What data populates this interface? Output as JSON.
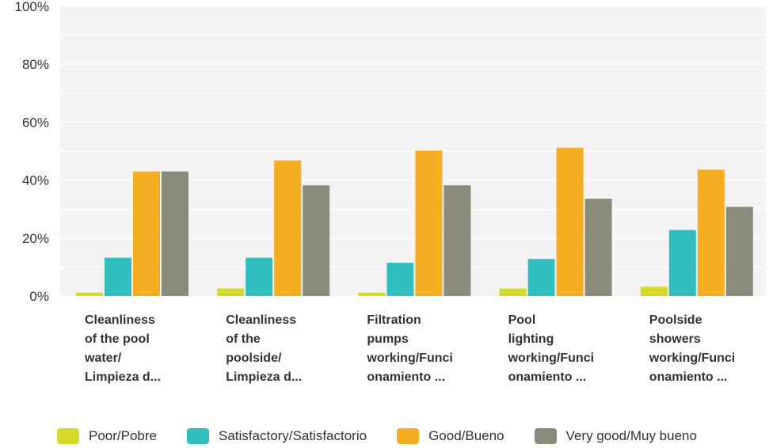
{
  "chart_data": {
    "type": "bar",
    "title": "",
    "xlabel": "",
    "ylabel": "",
    "ylim": [
      0,
      100
    ],
    "yticks": [
      "0%",
      "20%",
      "40%",
      "60%",
      "80%",
      "100%"
    ],
    "grid": true,
    "legend_position": "bottom",
    "categories": [
      [
        "Cleanliness",
        "of the pool",
        "water/",
        "Limpieza d..."
      ],
      [
        "Cleanliness",
        "of the",
        "poolside/",
        "Limpieza d..."
      ],
      [
        "Filtration",
        "pumps",
        "working/Funci",
        "onamiento ..."
      ],
      [
        "Pool",
        "lighting",
        "working/Funci",
        "onamiento ..."
      ],
      [
        "Poolside",
        "showers",
        "working/Funci",
        "onamiento ..."
      ]
    ],
    "series": [
      {
        "name": "Poor/Pobre",
        "color": "#d4d92a",
        "values": [
          1.2,
          2.6,
          1.2,
          2.6,
          3.2
        ]
      },
      {
        "name": "Satisfactory/Satisfactorio",
        "color": "#32bebf",
        "values": [
          13.2,
          13.2,
          11.5,
          12.8,
          22.8
        ]
      },
      {
        "name": "Good/Bueno",
        "color": "#f5ad22",
        "values": [
          43.0,
          46.8,
          50.2,
          51.2,
          43.6
        ]
      },
      {
        "name": "Very good/Muy bueno",
        "color": "#8b8b7b",
        "values": [
          43.0,
          38.2,
          38.2,
          33.6,
          30.8
        ]
      }
    ]
  }
}
